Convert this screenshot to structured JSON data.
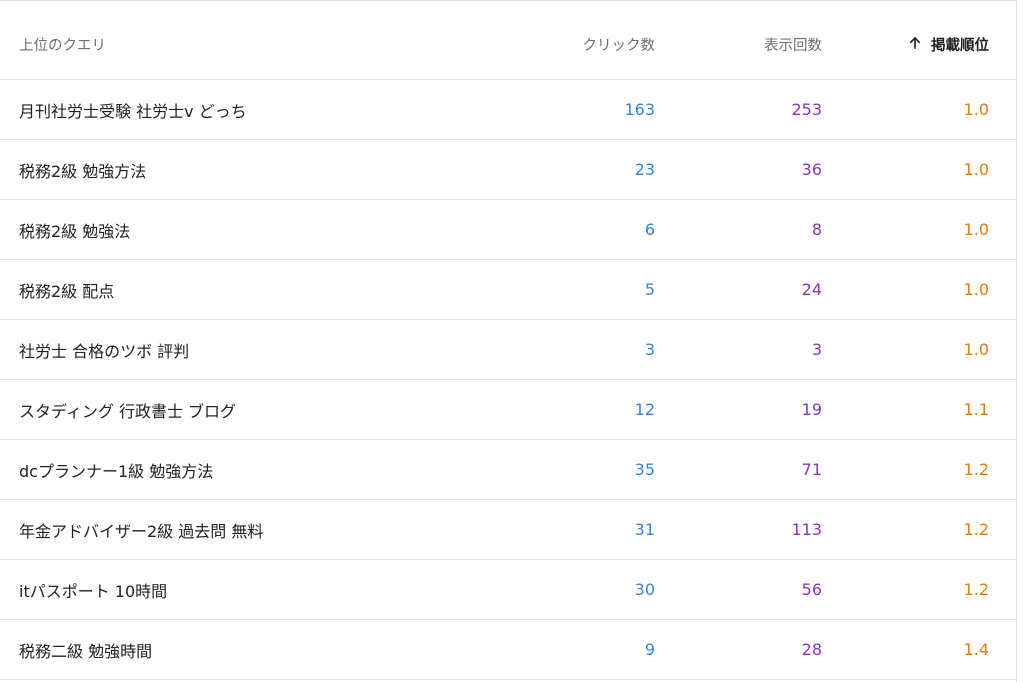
{
  "table": {
    "headers": {
      "query": "上位のクエリ",
      "clicks": "クリック数",
      "impressions": "表示回数",
      "position": "掲載順位"
    },
    "sort_icon": "arrow-up-icon",
    "colors": {
      "clicks": "#3a84d6",
      "impressions": "#8e35b3",
      "position": "#e07c11",
      "text": "#202124",
      "header_text": "#6f6f6f"
    },
    "rows": [
      {
        "query": "月刊社労士受験 社労士v どっち",
        "clicks": "163",
        "impressions": "253",
        "position": "1.0"
      },
      {
        "query": "税務2級 勉強方法",
        "clicks": "23",
        "impressions": "36",
        "position": "1.0"
      },
      {
        "query": "税務2級 勉強法",
        "clicks": "6",
        "impressions": "8",
        "position": "1.0"
      },
      {
        "query": "税務2級 配点",
        "clicks": "5",
        "impressions": "24",
        "position": "1.0"
      },
      {
        "query": "社労士 合格のツボ 評判",
        "clicks": "3",
        "impressions": "3",
        "position": "1.0"
      },
      {
        "query": "スタディング 行政書士 ブログ",
        "clicks": "12",
        "impressions": "19",
        "position": "1.1"
      },
      {
        "query": "dcプランナー1級 勉強方法",
        "clicks": "35",
        "impressions": "71",
        "position": "1.2"
      },
      {
        "query": "年金アドバイザー2級 過去問 無料",
        "clicks": "31",
        "impressions": "113",
        "position": "1.2"
      },
      {
        "query": "itパスポート 10時間",
        "clicks": "30",
        "impressions": "56",
        "position": "1.2"
      },
      {
        "query": "税務二級 勉強時間",
        "clicks": "9",
        "impressions": "28",
        "position": "1.4"
      }
    ]
  }
}
